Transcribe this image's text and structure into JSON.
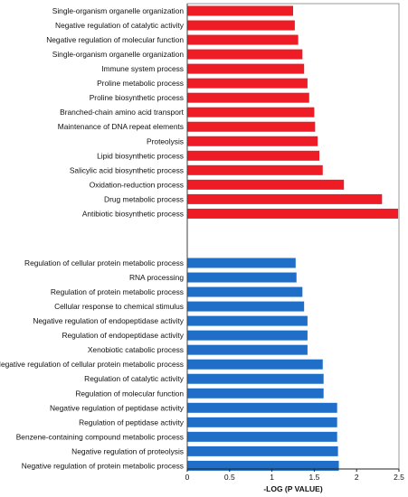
{
  "chart_data": {
    "type": "bar",
    "orientation": "horizontal",
    "xlabel": "-LOG (P VALUE)",
    "xlim": [
      0,
      2.5
    ],
    "xticks": [
      "0",
      "0.5",
      "1",
      "1.5",
      "2",
      "2.5"
    ],
    "grid": false,
    "colors": {
      "red": "#ee1c25",
      "blue": "#1f6fc9"
    },
    "series": [
      {
        "color": "red",
        "categories": [
          "Single-organism organelle organization",
          "Negative regulation of catalytic activity",
          "Negative regulation of molecular function",
          "Single-organism organelle organization",
          "Immune system process",
          "Proline metabolic process",
          "Proline biosynthetic process",
          "Branched-chain amino acid transport",
          "Maintenance of DNA repeat elements",
          "Proteolysis",
          "Lipid biosynthetic process",
          "Salicylic acid biosynthetic process",
          "Oxidation-reduction process",
          "Drug metabolic process",
          "Antibiotic biosynthetic process"
        ],
        "values": [
          1.25,
          1.27,
          1.31,
          1.36,
          1.38,
          1.42,
          1.44,
          1.5,
          1.51,
          1.54,
          1.56,
          1.6,
          1.85,
          2.3,
          2.49
        ]
      },
      {
        "color": "blue",
        "categories": [
          "Regulation of cellular protein metabolic process",
          "RNA processing",
          "Regulation of protein metabolic process",
          "Cellular response to chemical stimulus",
          "Negative regulation of endopeptidase activity",
          "Regulation of endopeptidase activity",
          "Xenobiotic catabolic process",
          "Negative regulation of cellular protein metabolic process",
          "Regulation of catalytic activity",
          "Regulation of molecular function",
          "Negative regulation of peptidase activity",
          "Regulation of peptidase activity",
          "Benzene-containing compound metabolic process",
          "Negative regulation of proteolysis",
          "Negative regulation of protein metabolic process"
        ],
        "values": [
          1.28,
          1.29,
          1.36,
          1.38,
          1.42,
          1.42,
          1.42,
          1.6,
          1.61,
          1.61,
          1.77,
          1.77,
          1.77,
          1.78,
          1.79
        ]
      }
    ]
  }
}
